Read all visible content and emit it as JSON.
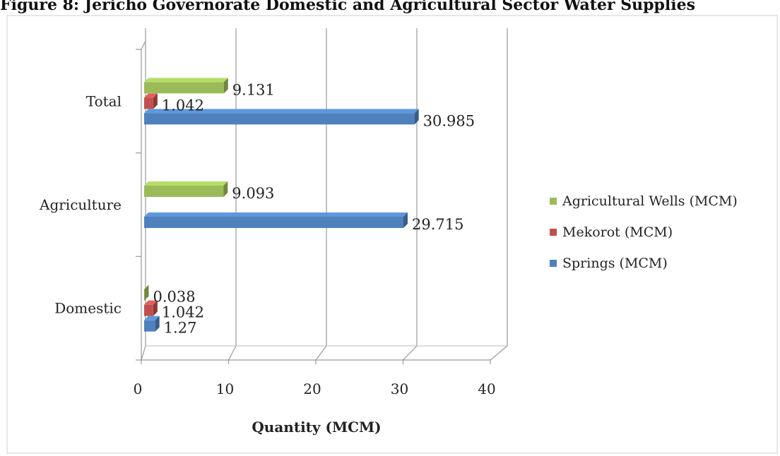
{
  "chart_data": {
    "type": "bar",
    "orientation": "horizontal",
    "title": "Figure 8: Jericho Governorate Domestic and Agricultural Sector Water Supplies",
    "xlabel": "Quantity (MCM)",
    "ylabel": "",
    "xlim": [
      0,
      40
    ],
    "x_ticks": [
      "0",
      "10",
      "20",
      "30",
      "40"
    ],
    "categories": [
      "Domestic",
      "Agriculture",
      "Total"
    ],
    "series": [
      {
        "name": "Springs (MCM)",
        "color": "#4f81bd",
        "values": [
          1.27,
          29.715,
          30.985
        ],
        "labels": [
          "1.27",
          "29.715",
          "30.985"
        ]
      },
      {
        "name": "Mekorot (MCM)",
        "color": "#c0504d",
        "values": [
          1.042,
          null,
          1.042
        ],
        "labels": [
          "1.042",
          "",
          "1.042"
        ]
      },
      {
        "name": "Agricultural Wells (MCM)",
        "color": "#9bbb59",
        "values": [
          0.038,
          9.093,
          9.131
        ],
        "labels": [
          "0.038",
          "9.093",
          "9.131"
        ]
      }
    ],
    "legend": {
      "position": "right",
      "entries": [
        "Agricultural Wells (MCM)",
        "Mekorot (MCM)",
        "Springs (MCM)"
      ]
    },
    "grid": true,
    "style": "3d"
  }
}
